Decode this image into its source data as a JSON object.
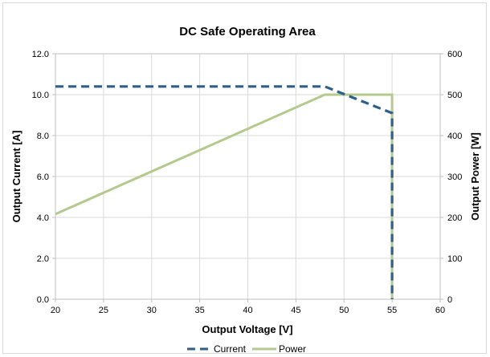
{
  "chart_data": {
    "type": "line",
    "title": "DC Safe Operating Area",
    "xlabel": "Output Voltage [V]",
    "ylabel": "Output Current [A]",
    "y2label": "Output Power [W]",
    "xlim": [
      20,
      60
    ],
    "ylim": [
      0,
      12
    ],
    "y2lim": [
      0,
      600
    ],
    "xticks": [
      "20",
      "25",
      "30",
      "35",
      "40",
      "45",
      "50",
      "55",
      "60"
    ],
    "yticks": [
      "0.0",
      "2.0",
      "4.0",
      "6.0",
      "8.0",
      "10.0",
      "12.0"
    ],
    "y2ticks": [
      "0",
      "100",
      "200",
      "300",
      "400",
      "500",
      "600"
    ],
    "grid": true,
    "legend_position": "bottom",
    "series": [
      {
        "name": "Current",
        "axis": "left",
        "style": "dashed",
        "color": "#2e5f8a",
        "points": [
          [
            20,
            10.4
          ],
          [
            48,
            10.4
          ],
          [
            55,
            9.1
          ],
          [
            55,
            0
          ]
        ]
      },
      {
        "name": "Power",
        "axis": "right",
        "style": "solid",
        "color": "#b4c98e",
        "points": [
          [
            20,
            208
          ],
          [
            48,
            500
          ],
          [
            55,
            500
          ],
          [
            55,
            0
          ]
        ]
      }
    ]
  }
}
